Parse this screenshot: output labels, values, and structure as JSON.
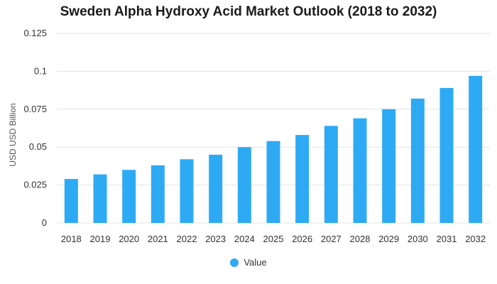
{
  "chart_data": {
    "type": "bar",
    "title": "Sweden Alpha Hydroxy Acid Market Outlook (2018 to 2032)",
    "xlabel": "",
    "ylabel": "USD USD Billion",
    "categories": [
      "2018",
      "2019",
      "2020",
      "2021",
      "2022",
      "2023",
      "2024",
      "2025",
      "2026",
      "2027",
      "2028",
      "2029",
      "2030",
      "2031",
      "2032"
    ],
    "series": [
      {
        "name": "Value",
        "values": [
          0.029,
          0.032,
          0.035,
          0.038,
          0.042,
          0.045,
          0.05,
          0.054,
          0.058,
          0.064,
          0.069,
          0.075,
          0.082,
          0.089,
          0.097
        ]
      }
    ],
    "ylim": [
      0,
      0.125
    ],
    "yticks": [
      "0",
      "0.025",
      "0.05",
      "0.075",
      "0.1",
      "0.125"
    ],
    "grid": true,
    "legend_position": "bottom",
    "bar_color": "#2eaaf5"
  }
}
